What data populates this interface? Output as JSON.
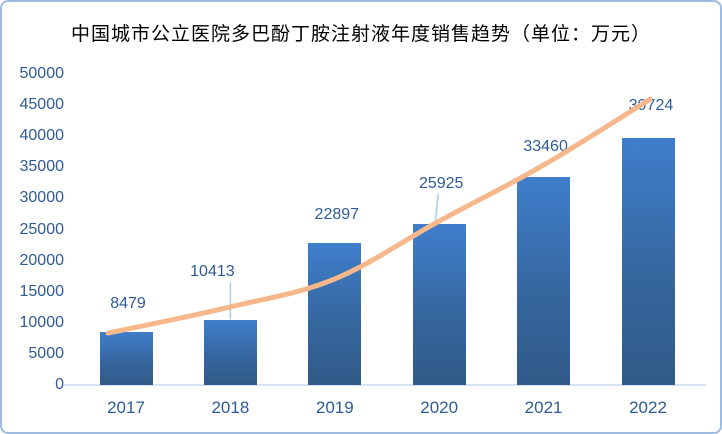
{
  "chart_data": {
    "type": "bar",
    "title": "中国城市公立医院多巴酚丁胺注射液年度销售趋势（单位：万元）",
    "categories": [
      "2017",
      "2018",
      "2019",
      "2020",
      "2021",
      "2022"
    ],
    "values": [
      8479,
      10413,
      22897,
      25925,
      33460,
      39724
    ],
    "data_labels": [
      "8479",
      "10413",
      "22897",
      "25925",
      "33460",
      "39724"
    ],
    "xlabel": "",
    "ylabel": "",
    "ylim": [
      0,
      50000
    ],
    "ytick_step": 5000,
    "grid": false,
    "legend": "none",
    "trendline": {
      "shape": "smooth accelerating curve (exponential fit)",
      "approx_values_at_years": [
        8350,
        12550,
        17050,
        26350,
        35350
      ],
      "end_value_approx": 45950
    },
    "colors": {
      "bar_top": "#3f7ecb",
      "bar_bottom": "#315a88",
      "trend_line": "#f6b88b",
      "leader_line": "#a8ccea",
      "data_label": "#2e5b97",
      "tick_label": "#2e5b97",
      "axis_line": "#d9e2f0",
      "title": "#000000",
      "frame_border": "#9fbbde",
      "background": "#ffffff"
    }
  }
}
